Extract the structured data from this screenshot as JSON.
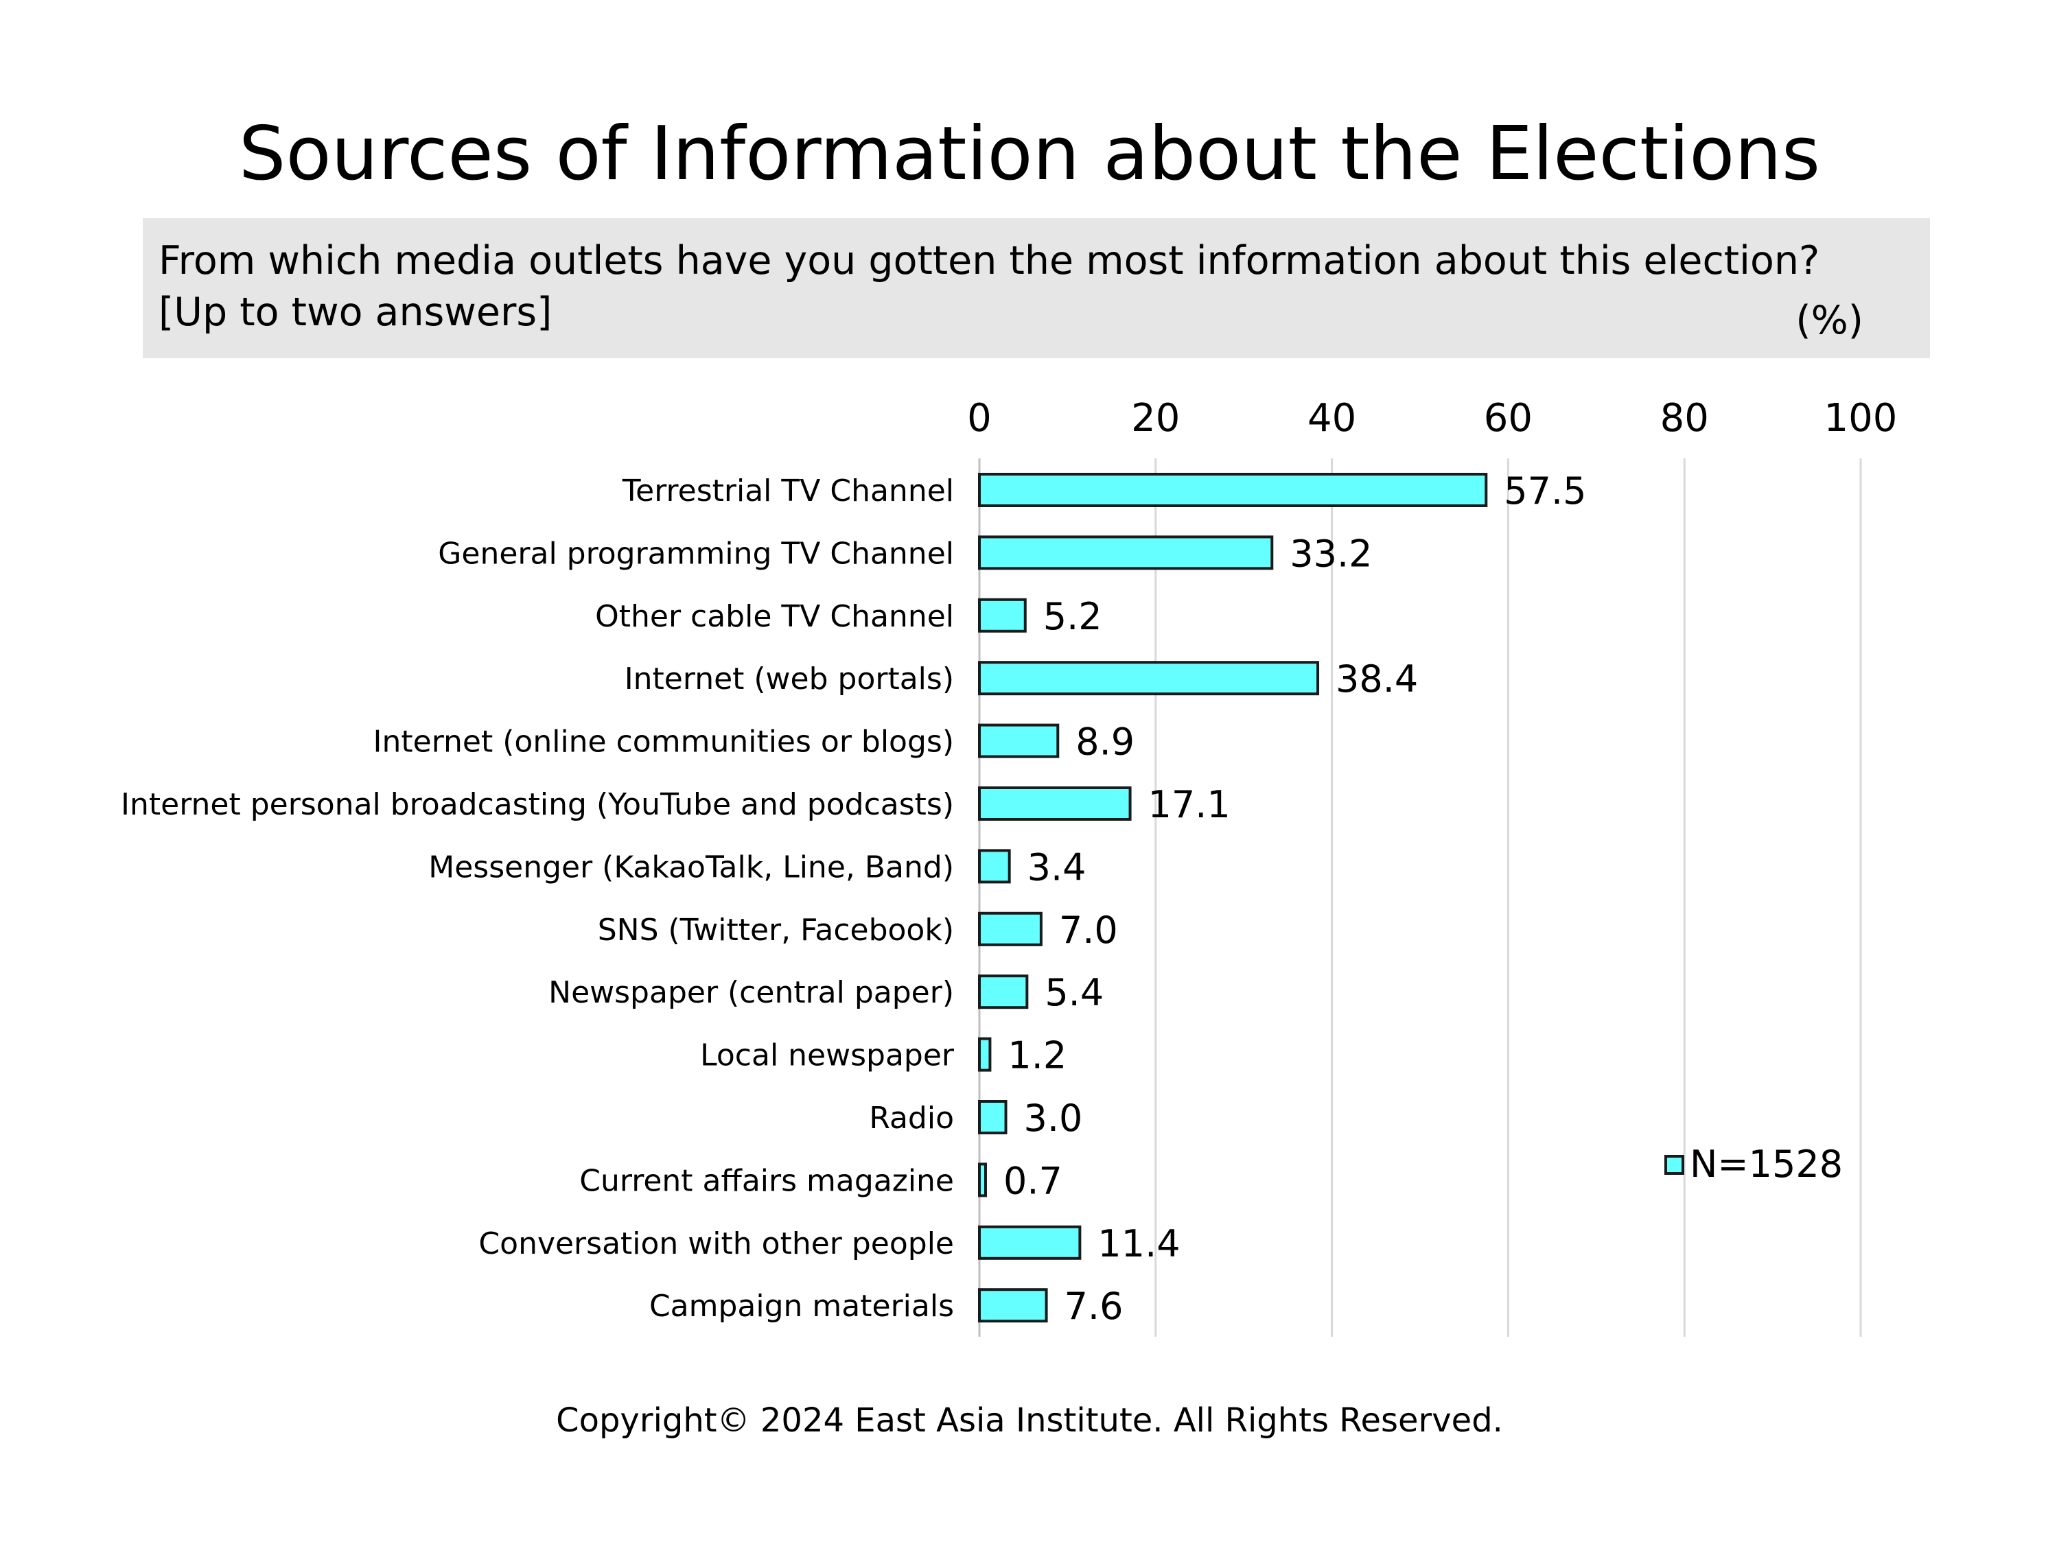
{
  "title": "Sources of Information about the Elections",
  "question": {
    "line1": "From which media outlets have you gotten the most information about this election?",
    "line2": "[Up to two answers]",
    "unit": "(%)"
  },
  "chart_data": {
    "type": "bar",
    "orientation": "horizontal",
    "categories": [
      "Terrestrial TV Channel",
      "General programming TV Channel",
      "Other cable TV Channel",
      "Internet (web  portals)",
      "Internet (online communities or blogs)",
      "Internet personal broadcasting (YouTube and podcasts)",
      "Messenger (KakaoTalk, Line, Band)",
      "SNS (Twitter, Facebook)",
      "Newspaper (central paper)",
      "Local newspaper",
      "Radio",
      "Current affairs magazine",
      "Conversation with other people",
      "Campaign materials"
    ],
    "values": [
      57.5,
      33.2,
      5.2,
      38.4,
      8.9,
      17.1,
      3.4,
      7.0,
      5.4,
      1.2,
      3.0,
      0.7,
      11.4,
      7.6
    ],
    "value_labels": [
      "57.5",
      "33.2",
      "5.2",
      "38.4",
      "8.9",
      "17.1",
      "3.4",
      "7.0",
      "5.4",
      "1.2",
      "3.0",
      "0.7",
      "11.4",
      "7.6"
    ],
    "xlim": [
      0,
      100
    ],
    "xticks": [
      0,
      20,
      40,
      60,
      80,
      100
    ],
    "grid": true,
    "legend": {
      "label": "N=1528",
      "placement": "right"
    },
    "colors": {
      "bar_fill": "#66ffff",
      "bar_stroke": "#1a1a1a",
      "grid": "#d9d9d9"
    }
  },
  "footer": "Copyright© 2024 East Asia Institute. All Rights Reserved."
}
